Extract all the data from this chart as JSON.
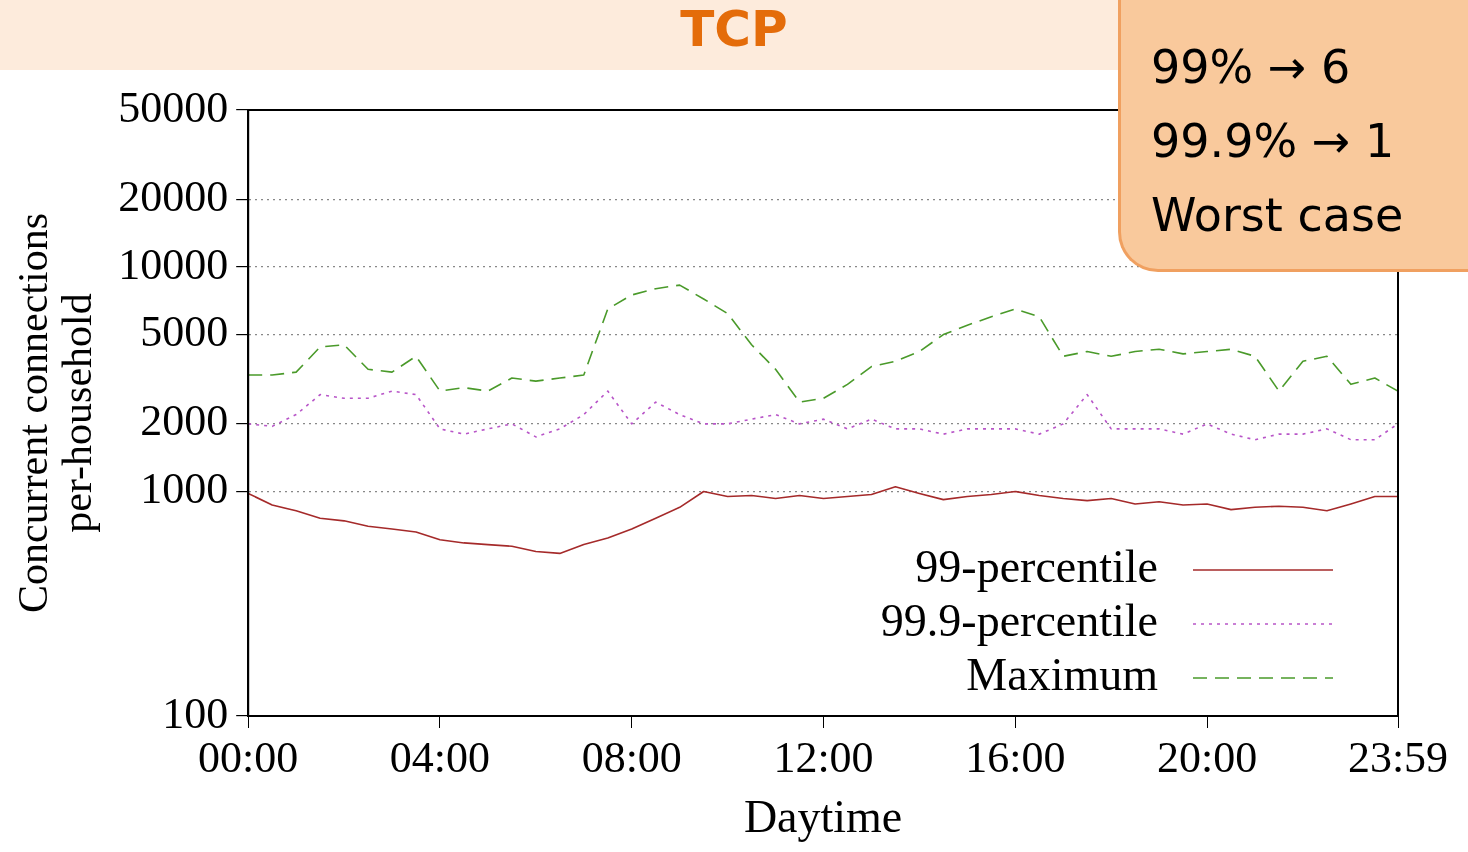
{
  "chart_data": {
    "type": "line",
    "title": "TCP",
    "xlabel": "Daytime",
    "ylabel": "Concurrent connections\nper-household",
    "x": [
      0,
      0.5,
      1,
      1.5,
      2,
      2.5,
      3,
      3.5,
      4,
      4.5,
      5,
      5.5,
      6,
      6.5,
      7,
      7.5,
      8,
      8.5,
      9,
      9.5,
      10,
      10.5,
      11,
      11.5,
      12,
      12.5,
      13,
      13.5,
      14,
      14.5,
      15,
      15.5,
      16,
      16.5,
      17,
      17.5,
      18,
      18.5,
      19,
      19.5,
      20,
      20.5,
      21,
      21.5,
      22,
      22.5,
      23,
      23.5,
      23.98
    ],
    "series": [
      {
        "name": "99-percentile",
        "color": "#a52a2a",
        "line_style": "solid",
        "values": [
          980,
          870,
          820,
          760,
          740,
          700,
          680,
          660,
          610,
          590,
          580,
          570,
          540,
          530,
          580,
          620,
          680,
          760,
          850,
          1000,
          950,
          960,
          930,
          960,
          930,
          950,
          970,
          1050,
          980,
          920,
          950,
          970,
          1000,
          960,
          930,
          910,
          930,
          880,
          900,
          870,
          880,
          830,
          850,
          860,
          850,
          820,
          880,
          950,
          950
        ]
      },
      {
        "name": "99.9-percentile",
        "color": "#b855c8",
        "line_style": "dotted",
        "values": [
          2000,
          1950,
          2200,
          2700,
          2600,
          2600,
          2800,
          2700,
          1900,
          1800,
          1900,
          2000,
          1750,
          1900,
          2200,
          2800,
          2000,
          2500,
          2200,
          2000,
          2000,
          2100,
          2200,
          2000,
          2100,
          1900,
          2100,
          1900,
          1900,
          1800,
          1900,
          1900,
          1900,
          1800,
          2000,
          2700,
          1900,
          1900,
          1900,
          1800,
          2000,
          1800,
          1700,
          1800,
          1800,
          1900,
          1700,
          1700,
          2000
        ]
      },
      {
        "name": "Maximum",
        "color": "#4a9a2a",
        "line_style": "dashed",
        "values": [
          3300,
          3300,
          3400,
          4400,
          4500,
          3500,
          3400,
          4000,
          2800,
          2900,
          2800,
          3200,
          3100,
          3200,
          3300,
          6500,
          7500,
          8000,
          8300,
          7200,
          6200,
          4500,
          3500,
          2500,
          2600,
          3000,
          3600,
          3800,
          4200,
          5000,
          5500,
          6000,
          6500,
          6000,
          4000,
          4200,
          4000,
          4200,
          4300,
          4100,
          4200,
          4300,
          4000,
          2800,
          3800,
          4000,
          3000,
          3200,
          2800
        ]
      }
    ],
    "log": true,
    "ylim": [
      100,
      50000
    ],
    "yticks": [
      100,
      1000,
      2000,
      5000,
      10000,
      20000,
      50000
    ],
    "xlim": [
      0,
      23.983
    ],
    "xticks": [
      {
        "value": 0,
        "label": "00:00"
      },
      {
        "value": 4,
        "label": "04:00"
      },
      {
        "value": 8,
        "label": "08:00"
      },
      {
        "value": 12,
        "label": "12:00"
      },
      {
        "value": 16,
        "label": "16:00"
      },
      {
        "value": 20,
        "label": "20:00"
      },
      {
        "value": 23.983,
        "label": "23:59"
      }
    ],
    "grid": "y",
    "legend": "bottom right",
    "marker": "none",
    "annotations": [
      "99% → 6",
      "99.9% → 1",
      "Worst case"
    ]
  }
}
